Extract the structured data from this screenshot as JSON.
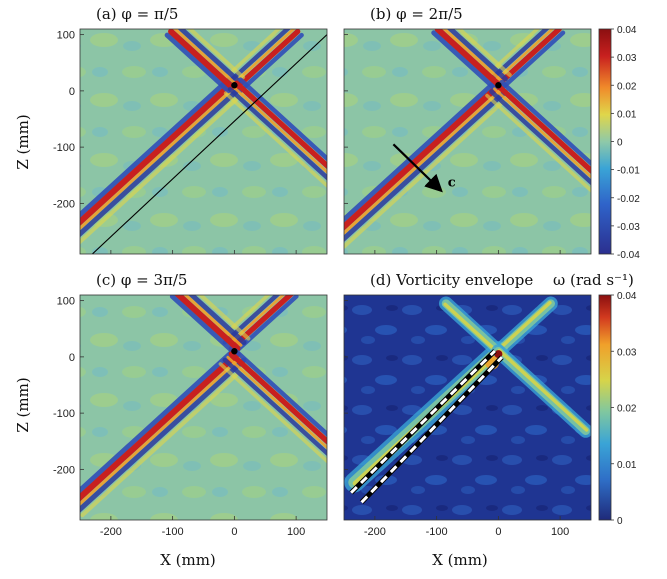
{
  "chart_data": {
    "type": "heatmap",
    "figure": "Phase-resolved vorticity fields of an internal wave beam and vorticity envelope",
    "colors": {
      "diverging": [
        "#2b2f8f",
        "#2f63c9",
        "#3aa4d6",
        "#8fc9a8",
        "#7fbf6a",
        "#e0d64a",
        "#f08a2a",
        "#c8201f",
        "#8b0f10"
      ],
      "sequential": [
        "#1f2a7a",
        "#243f9c",
        "#2f6fc7",
        "#3aa4d6",
        "#7fc7a0",
        "#d6d44a",
        "#f0a02a",
        "#d23a1f",
        "#8b0f10"
      ],
      "line": "#000000"
    },
    "axes": {
      "xlabel": "X (mm)",
      "ylabel": "Z (mm)",
      "xlim": [
        -250,
        150
      ],
      "ylim": [
        -290,
        110
      ],
      "xticks": [
        "-200",
        "-100",
        "0",
        "100"
      ],
      "yticks": [
        "100",
        "0",
        "-100",
        "-200"
      ]
    },
    "panels": [
      {
        "id": "a",
        "title": "(a) φ = π/5",
        "colormap": "diverging",
        "marker": {
          "x": 0,
          "z": 10
        },
        "annotation": "line"
      },
      {
        "id": "b",
        "title": "(b) φ = 2π/5",
        "colormap": "diverging",
        "marker": {
          "x": 0,
          "z": 10
        },
        "annotation": "arrow",
        "arrow_label": "c"
      },
      {
        "id": "c",
        "title": "(c) φ = 3π/5",
        "colormap": "diverging",
        "marker": {
          "x": 0,
          "z": 10
        },
        "annotation": "none"
      },
      {
        "id": "d",
        "title": "(d) Vorticity envelope",
        "colormap": "sequential",
        "annotation": "dashed-band"
      }
    ],
    "colorbars": [
      {
        "id": "top",
        "range": [
          -0.04,
          0.04
        ],
        "ticks": [
          "0.04",
          "0.03",
          "0.02",
          "0.01",
          "0",
          "-0.01",
          "-0.02",
          "-0.03",
          "-0.04"
        ]
      },
      {
        "id": "bottom",
        "label": "ω (rad s⁻¹)",
        "range": [
          0,
          0.04
        ],
        "ticks": [
          "0.04",
          "0.03",
          "0.02",
          "0.01",
          "0"
        ]
      }
    ]
  }
}
